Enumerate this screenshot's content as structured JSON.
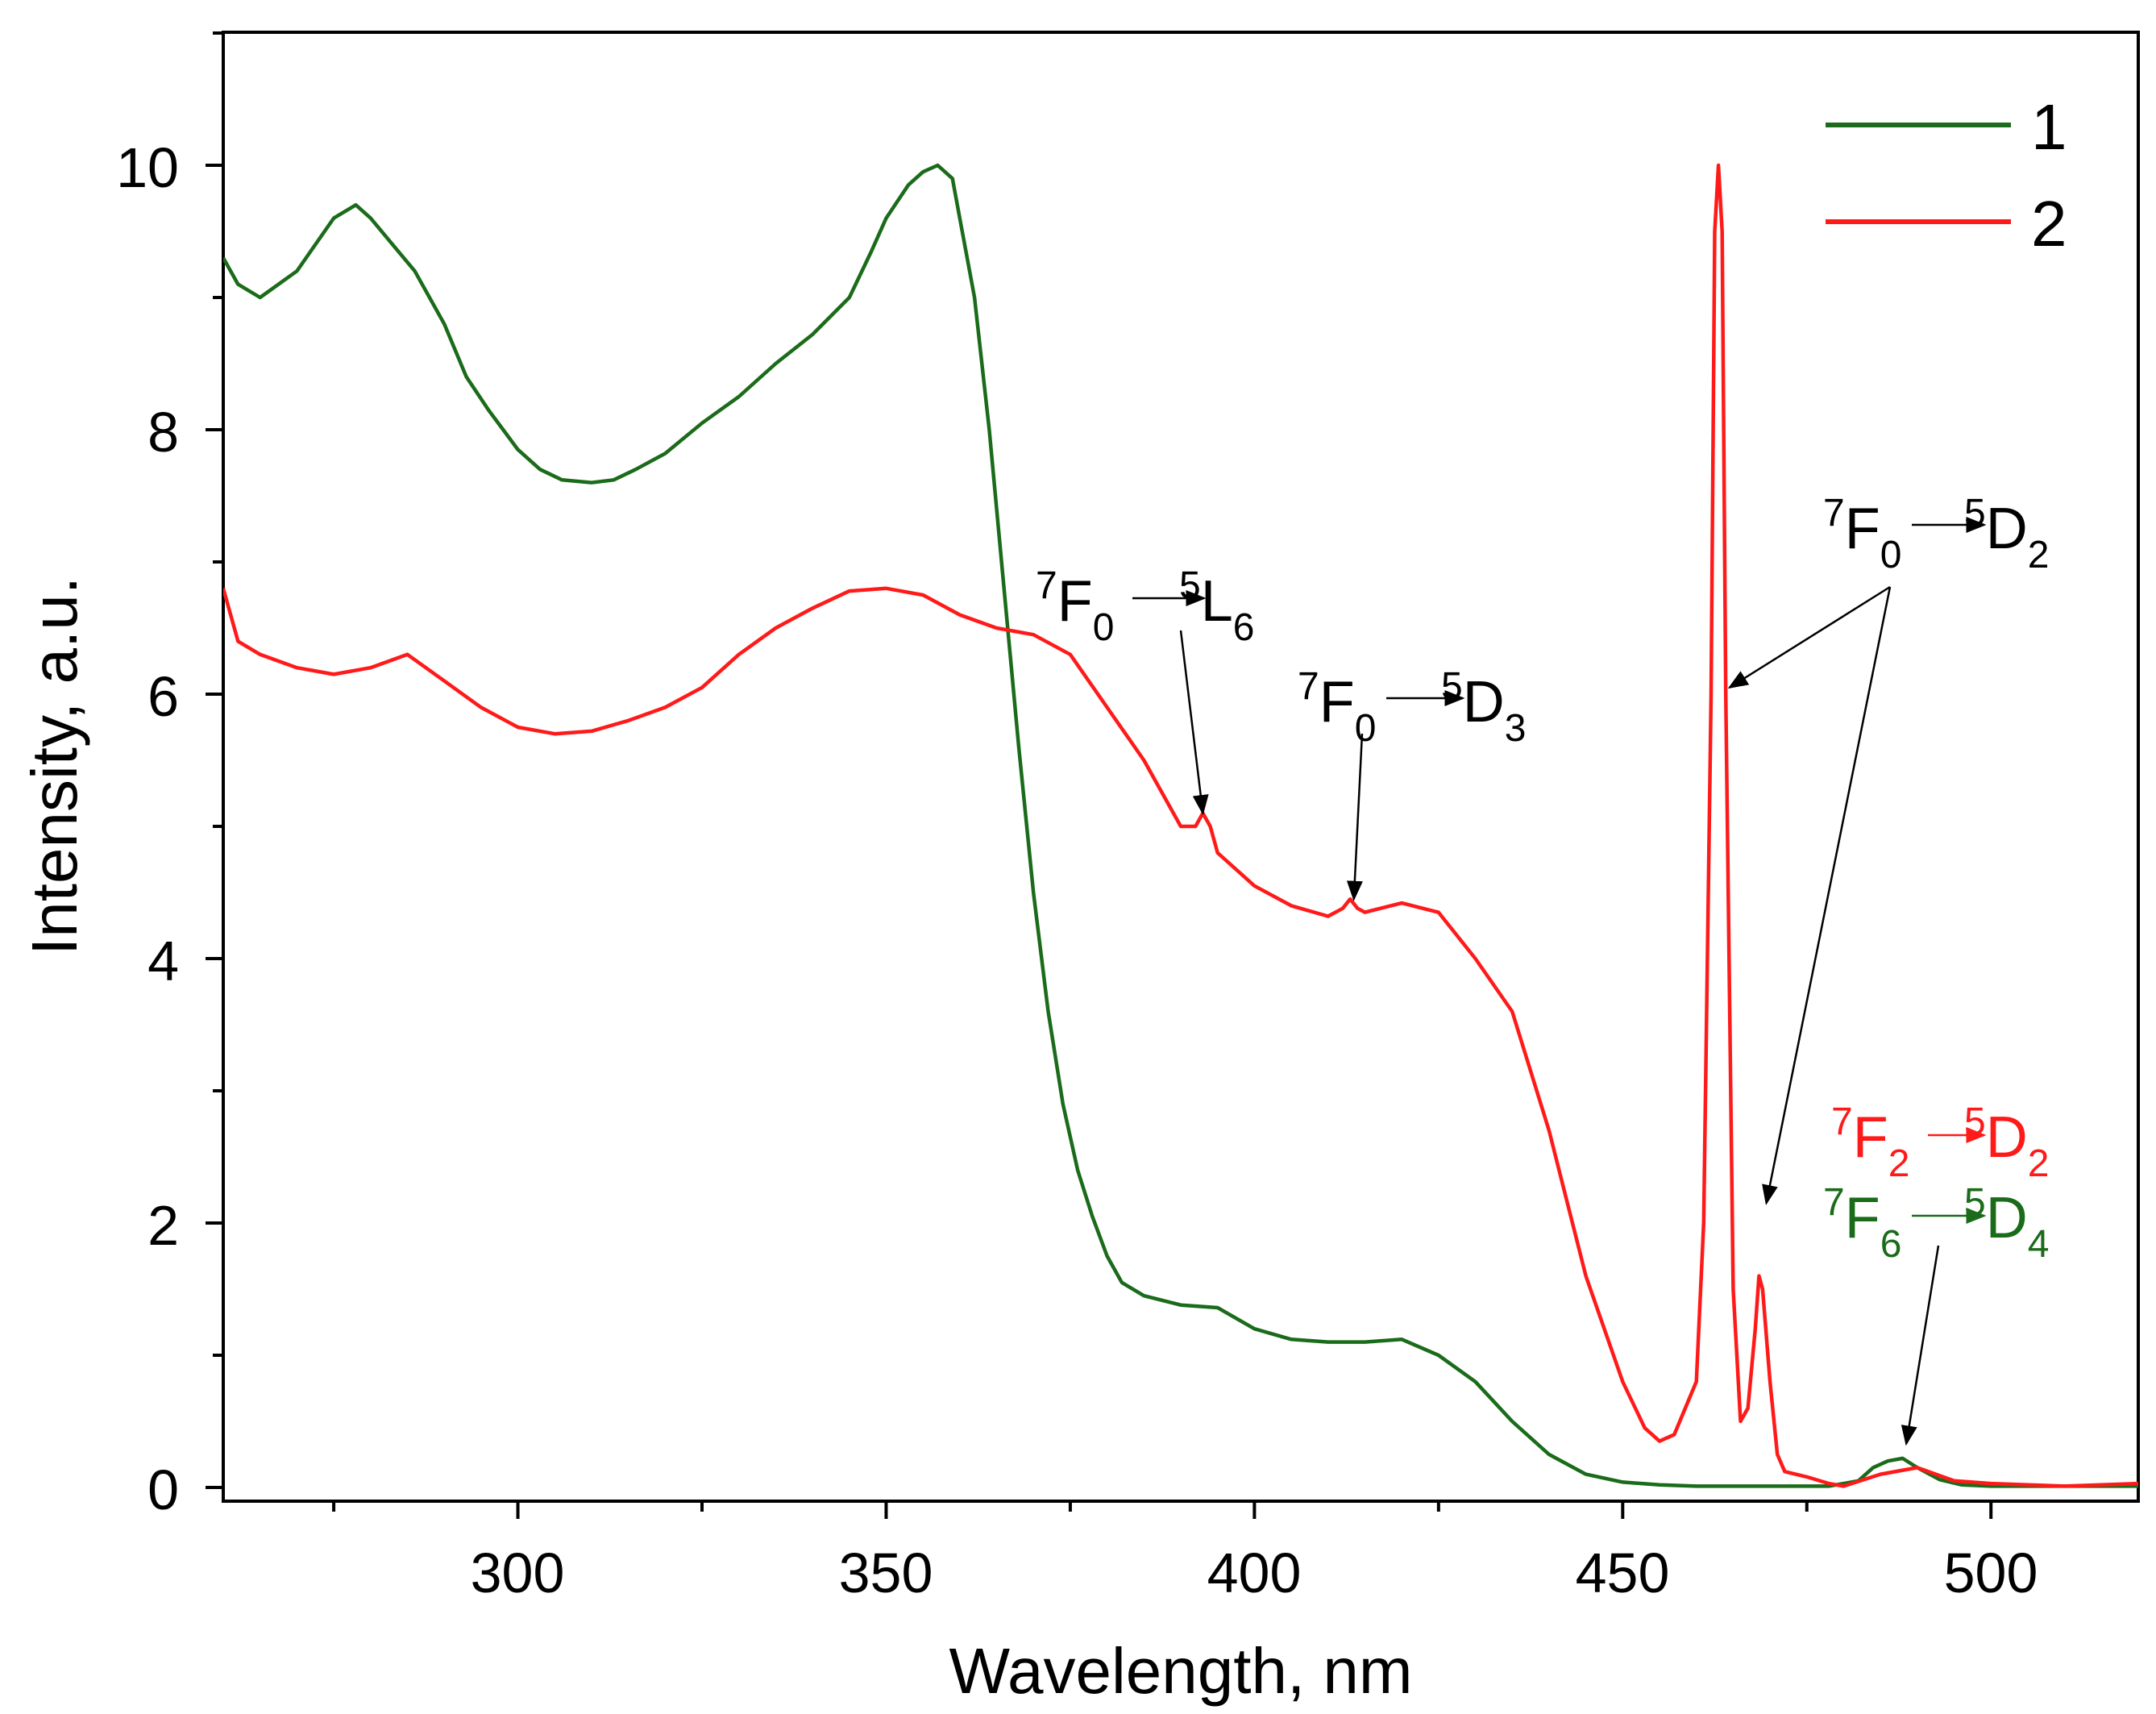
{
  "chart_data": {
    "type": "line",
    "title": "",
    "xlabel": "Wavelength, nm",
    "ylabel": "Intensity, a.u.",
    "xlim": [
      260,
      520
    ],
    "ylim": [
      0,
      11
    ],
    "xticks": [
      300,
      350,
      400,
      450,
      500
    ],
    "xtick_labels": [
      "300",
      "350",
      "400",
      "450",
      "500"
    ],
    "yticks": [
      0,
      2,
      4,
      6,
      8,
      10
    ],
    "ytick_labels": [
      "0",
      "2",
      "4",
      "6",
      "8",
      "10"
    ],
    "legend": {
      "position": "top-right",
      "entries": [
        "1",
        "2"
      ]
    },
    "colors": {
      "series1": "#1a6b1a",
      "series2": "#ff1a1a",
      "axis": "#000000",
      "annotation": "#000000"
    },
    "series": [
      {
        "name": "1",
        "x": [
          260,
          262,
          265,
          270,
          275,
          278,
          280,
          283,
          286,
          290,
          293,
          296,
          300,
          303,
          306,
          310,
          313,
          316,
          320,
          325,
          330,
          335,
          340,
          345,
          348,
          350,
          353,
          355,
          357,
          359,
          360,
          362,
          364,
          366,
          368,
          370,
          372,
          374,
          376,
          378,
          380,
          382,
          385,
          390,
          395,
          400,
          405,
          410,
          415,
          420,
          425,
          430,
          435,
          440,
          445,
          450,
          455,
          460,
          470,
          478,
          482,
          484,
          486,
          488,
          490,
          493,
          496,
          500,
          510,
          520
        ],
        "y": [
          9.3,
          9.1,
          9.0,
          9.2,
          9.6,
          9.7,
          9.6,
          9.4,
          9.2,
          8.8,
          8.4,
          8.15,
          7.85,
          7.7,
          7.62,
          7.6,
          7.62,
          7.7,
          7.82,
          8.05,
          8.25,
          8.5,
          8.72,
          9.0,
          9.35,
          9.6,
          9.85,
          9.95,
          10.0,
          9.9,
          9.6,
          9.0,
          8.0,
          6.8,
          5.6,
          4.5,
          3.6,
          2.9,
          2.4,
          2.05,
          1.75,
          1.55,
          1.45,
          1.38,
          1.36,
          1.2,
          1.12,
          1.1,
          1.1,
          1.12,
          1.0,
          0.8,
          0.5,
          0.25,
          0.1,
          0.04,
          0.02,
          0.01,
          0.01,
          0.01,
          0.05,
          0.15,
          0.2,
          0.22,
          0.15,
          0.06,
          0.02,
          0.01,
          0.01,
          0.01
        ]
      },
      {
        "name": "2",
        "x": [
          260,
          262,
          265,
          270,
          275,
          280,
          285,
          290,
          295,
          300,
          305,
          310,
          315,
          320,
          325,
          330,
          335,
          340,
          345,
          350,
          355,
          360,
          365,
          370,
          375,
          380,
          385,
          390,
          392,
          393,
          394,
          395,
          400,
          405,
          410,
          412,
          413,
          414,
          415,
          420,
          425,
          430,
          435,
          440,
          445,
          450,
          453,
          455,
          457,
          460,
          461,
          462,
          462.5,
          463,
          463.5,
          464,
          465,
          466,
          467,
          468,
          468.5,
          469,
          470,
          471,
          472,
          475,
          478,
          480,
          485,
          490,
          495,
          500,
          510,
          520
        ],
        "y": [
          6.8,
          6.4,
          6.3,
          6.2,
          6.15,
          6.2,
          6.3,
          6.1,
          5.9,
          5.75,
          5.7,
          5.72,
          5.8,
          5.9,
          6.05,
          6.3,
          6.5,
          6.65,
          6.78,
          6.8,
          6.75,
          6.6,
          6.5,
          6.45,
          6.3,
          5.9,
          5.5,
          5.0,
          5.0,
          5.1,
          5.0,
          4.8,
          4.55,
          4.4,
          4.32,
          4.38,
          4.45,
          4.38,
          4.35,
          4.42,
          4.35,
          4.0,
          3.6,
          2.7,
          1.6,
          0.8,
          0.45,
          0.35,
          0.4,
          0.8,
          2.0,
          6.0,
          9.5,
          10.0,
          9.5,
          6.0,
          1.5,
          0.5,
          0.6,
          1.2,
          1.6,
          1.5,
          0.8,
          0.25,
          0.12,
          0.08,
          0.03,
          0.01,
          0.1,
          0.15,
          0.05,
          0.03,
          0.01,
          0.03
        ]
      }
    ],
    "annotations": [
      {
        "id": "a1",
        "sup1": "7",
        "main1": "F",
        "sub1": "0",
        "sup2": "5",
        "main2": "L",
        "sub2": "6",
        "color": "#000000",
        "target_x": 393,
        "target_y": 5.1
      },
      {
        "id": "a2",
        "sup1": "7",
        "main1": "F",
        "sub1": "0",
        "sup2": "5",
        "main2": "D",
        "sub2": "3",
        "color": "#000000",
        "target_x": 413.5,
        "target_y": 4.45
      },
      {
        "id": "a3",
        "sup1": "7",
        "main1": "F",
        "sub1": "0",
        "sup2": "5",
        "main2": "D",
        "sub2": "2",
        "color": "#000000",
        "target_x": 464.5,
        "target_y": 6.05,
        "target2_x": 469.5,
        "target2_y": 2.15
      },
      {
        "id": "a4",
        "sup1": "7",
        "main1": "F",
        "sub1": "2",
        "sup2": "5",
        "main2": "D",
        "sub2": "2",
        "color": "#ff1a1a"
      },
      {
        "id": "a5",
        "sup1": "7",
        "main1": "F",
        "sub1": "6",
        "sup2": "5",
        "main2": "D",
        "sub2": "4",
        "color": "#1a6b1a",
        "target_x": 488.5,
        "target_y": 0.33
      }
    ]
  }
}
